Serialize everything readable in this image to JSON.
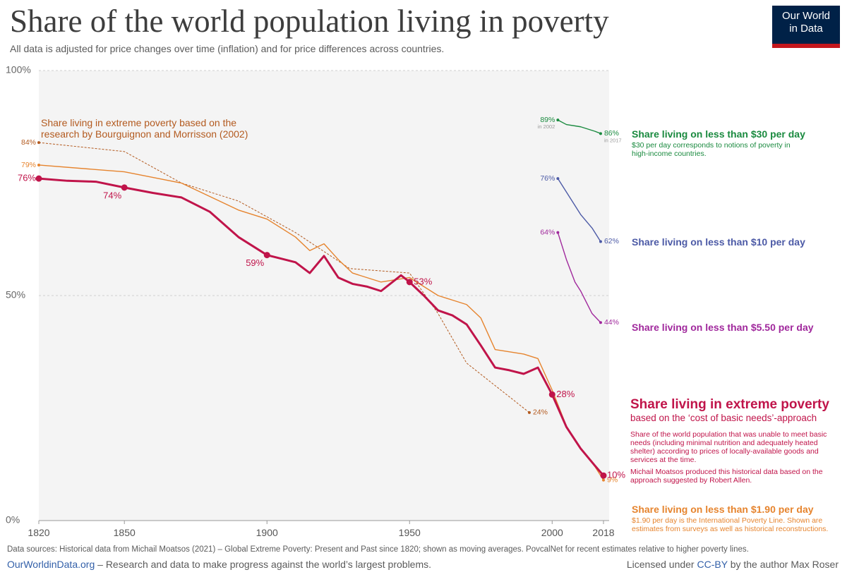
{
  "header": {
    "title": "Share of the world population living in poverty",
    "subtitle": "All data is adjusted for price changes over time (inflation) and for price differences across countries.",
    "logo": [
      "Our World",
      "in Data"
    ]
  },
  "chart_data": {
    "type": "line",
    "xlim": [
      1820,
      2018
    ],
    "xticks": [
      1820,
      1850,
      1900,
      1950,
      2000,
      2018
    ],
    "ylim": [
      0,
      100
    ],
    "yticks": [
      {
        "value": 0,
        "label": "0%"
      },
      {
        "value": 50,
        "label": "50%"
      },
      {
        "value": 100,
        "label": "100%"
      }
    ],
    "grid": true,
    "series": [
      {
        "name": "Share living in extreme poverty",
        "subtitle": "based on the ‘cost of basic needs’-approach",
        "description": "Share of the world population that was unable to meet basic needs (including minimal nutrition and adequately heated shelter) according to prices of locally-available goods and services at the time.",
        "note": "Michail Moatsos produced this historical data based on the approach suggested by Robert Allen.",
        "color": "#c0144a",
        "emphasis": true,
        "x": [
          1820,
          1830,
          1840,
          1850,
          1860,
          1870,
          1880,
          1890,
          1900,
          1905,
          1910,
          1915,
          1920,
          1925,
          1930,
          1935,
          1940,
          1947,
          1950,
          1955,
          1960,
          1965,
          1970,
          1975,
          1980,
          1985,
          1990,
          1995,
          2000,
          2005,
          2010,
          2015,
          2018
        ],
        "values": [
          76,
          75.5,
          75.3,
          74,
          72.8,
          71.8,
          68.6,
          63,
          59,
          58.2,
          57.4,
          55,
          58.8,
          54,
          52.6,
          52,
          51,
          54.5,
          53,
          50,
          46.7,
          45.6,
          43.6,
          38.9,
          34,
          33.4,
          32.6,
          34,
          28,
          20.8,
          16,
          12.2,
          10
        ],
        "value_labels": [
          "76%",
          null,
          null,
          "74%",
          null,
          null,
          null,
          null,
          "59%",
          null,
          null,
          null,
          null,
          null,
          null,
          null,
          null,
          null,
          "53%",
          null,
          null,
          null,
          null,
          null,
          null,
          null,
          null,
          null,
          "28%",
          null,
          null,
          null,
          "10%"
        ]
      },
      {
        "name": "Share living on less than $1.90 per day",
        "description": "$1.90 per day is the International Poverty Line. Shown are estimates from surveys as well as historical reconstructions.",
        "color": "#e6842e",
        "x": [
          1820,
          1850,
          1870,
          1890,
          1900,
          1910,
          1915,
          1920,
          1925,
          1930,
          1940,
          1950,
          1960,
          1965,
          1970,
          1975,
          1980,
          1990,
          1995,
          2000,
          2005,
          2010,
          2015,
          2018
        ],
        "values": [
          79,
          77.5,
          75,
          69,
          67,
          63,
          60,
          61.5,
          58,
          55,
          53,
          54,
          50,
          49,
          48,
          45,
          38,
          37,
          36,
          29,
          21,
          16,
          12,
          9
        ],
        "value_labels": [
          "79%",
          null,
          null,
          null,
          null,
          null,
          null,
          null,
          null,
          null,
          null,
          null,
          null,
          null,
          null,
          null,
          null,
          null,
          null,
          null,
          null,
          null,
          null,
          "9%"
        ]
      },
      {
        "name": "Share living in extreme poverty based on the research by Bourguignon and Morrisson (2002)",
        "color": "#b35a1f",
        "dashed": true,
        "x": [
          1820,
          1850,
          1870,
          1890,
          1910,
          1929,
          1950,
          1960,
          1970,
          1980,
          1992
        ],
        "values": [
          84,
          82,
          75,
          71,
          64,
          56,
          55,
          46,
          35,
          30,
          24
        ],
        "value_labels": [
          "84%",
          null,
          null,
          null,
          null,
          null,
          null,
          null,
          null,
          null,
          "24%"
        ]
      },
      {
        "name": "Share living on less than $30 per day",
        "description": "$30 per day corresponds to notions of poverty in high-income countries.",
        "color": "#1a8a3f",
        "x": [
          2002,
          2005,
          2010,
          2015,
          2017
        ],
        "values": [
          89,
          88,
          87.5,
          86.5,
          86
        ],
        "value_labels": [
          "89%",
          null,
          null,
          null,
          "86%"
        ],
        "notes": [
          "in 2002",
          "in 2017"
        ]
      },
      {
        "name": "Share living on less than $10 per day",
        "color": "#4c5aa6",
        "x": [
          2002,
          2005,
          2008,
          2010,
          2014,
          2017
        ],
        "values": [
          76,
          73,
          70,
          68,
          65,
          62
        ],
        "value_labels": [
          "76%",
          null,
          null,
          null,
          null,
          "62%"
        ]
      },
      {
        "name": "Share living on less than $5.50 per day",
        "color": "#a0289c",
        "x": [
          2002,
          2005,
          2008,
          2010,
          2014,
          2017
        ],
        "values": [
          64,
          58,
          53,
          51,
          46,
          44
        ],
        "value_labels": [
          "64%",
          null,
          null,
          null,
          null,
          "44%"
        ]
      }
    ]
  },
  "footer": {
    "sources": "Data sources: Historical data from Michail Moatsos (2021) – Global Extreme Poverty: Present and Past since 1820; shown as moving averages. PovcalNet for recent estimates relative to higher poverty lines.",
    "site": "OurWorldinData.org",
    "tagline": " – Research and data to make progress against the world’s largest problems.",
    "license_pre": "Licensed under ",
    "license": "CC-BY",
    "license_post": " by the author Max Roser"
  }
}
